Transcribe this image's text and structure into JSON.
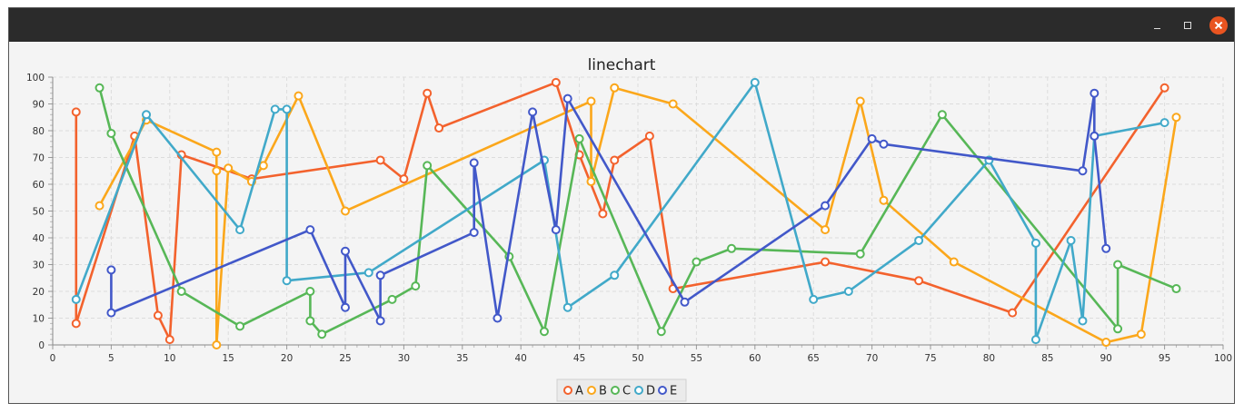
{
  "window": {
    "title": "",
    "controls": {
      "minimize": "minimize",
      "maximize": "maximize",
      "close": "close"
    }
  },
  "chart_data": {
    "type": "line",
    "title": "linechart",
    "xlabel": "",
    "ylabel": "",
    "xlim": [
      0,
      100
    ],
    "ylim": [
      0,
      100
    ],
    "xticks": [
      0,
      5,
      10,
      15,
      20,
      25,
      30,
      35,
      40,
      45,
      50,
      55,
      60,
      65,
      70,
      75,
      80,
      85,
      90,
      95,
      100
    ],
    "yticks": [
      0,
      10,
      20,
      30,
      40,
      50,
      60,
      70,
      80,
      90,
      100
    ],
    "grid": true,
    "legend_position": "bottom",
    "series": [
      {
        "name": "A",
        "color": "#f3622d",
        "points": [
          [
            2,
            87
          ],
          [
            2,
            8
          ],
          [
            7,
            78
          ],
          [
            9,
            11
          ],
          [
            10,
            2
          ],
          [
            11,
            71
          ],
          [
            17,
            62
          ],
          [
            28,
            69
          ],
          [
            30,
            62
          ],
          [
            32,
            94
          ],
          [
            33,
            81
          ],
          [
            43,
            98
          ],
          [
            45,
            71
          ],
          [
            47,
            49
          ],
          [
            48,
            69
          ],
          [
            51,
            78
          ],
          [
            53,
            21
          ],
          [
            66,
            31
          ],
          [
            74,
            24
          ],
          [
            82,
            12
          ],
          [
            95,
            96
          ]
        ]
      },
      {
        "name": "B",
        "color": "#fba71b",
        "points": [
          [
            4,
            52
          ],
          [
            8,
            84
          ],
          [
            14,
            72
          ],
          [
            14,
            65
          ],
          [
            14,
            0
          ],
          [
            15,
            66
          ],
          [
            17,
            61
          ],
          [
            18,
            67
          ],
          [
            21,
            93
          ],
          [
            25,
            50
          ],
          [
            46,
            91
          ],
          [
            46,
            61
          ],
          [
            48,
            96
          ],
          [
            53,
            90
          ],
          [
            66,
            43
          ],
          [
            69,
            91
          ],
          [
            71,
            54
          ],
          [
            77,
            31
          ],
          [
            90,
            1
          ],
          [
            93,
            4
          ],
          [
            96,
            85
          ]
        ]
      },
      {
        "name": "C",
        "color": "#57b757",
        "points": [
          [
            4,
            96
          ],
          [
            5,
            79
          ],
          [
            11,
            20
          ],
          [
            16,
            7
          ],
          [
            22,
            20
          ],
          [
            22,
            9
          ],
          [
            23,
            4
          ],
          [
            29,
            17
          ],
          [
            31,
            22
          ],
          [
            32,
            67
          ],
          [
            39,
            33
          ],
          [
            42,
            5
          ],
          [
            45,
            77
          ],
          [
            52,
            5
          ],
          [
            55,
            31
          ],
          [
            58,
            36
          ],
          [
            69,
            34
          ],
          [
            76,
            86
          ],
          [
            91,
            6
          ],
          [
            91,
            30
          ],
          [
            96,
            21
          ]
        ]
      },
      {
        "name": "D",
        "color": "#41a9c9",
        "points": [
          [
            2,
            17
          ],
          [
            8,
            86
          ],
          [
            16,
            43
          ],
          [
            19,
            88
          ],
          [
            20,
            88
          ],
          [
            20,
            24
          ],
          [
            27,
            27
          ],
          [
            42,
            69
          ],
          [
            44,
            14
          ],
          [
            48,
            26
          ],
          [
            60,
            98
          ],
          [
            65,
            17
          ],
          [
            68,
            20
          ],
          [
            74,
            39
          ],
          [
            80,
            69
          ],
          [
            84,
            38
          ],
          [
            84,
            2
          ],
          [
            87,
            39
          ],
          [
            88,
            9
          ],
          [
            89,
            78
          ],
          [
            95,
            83
          ]
        ]
      },
      {
        "name": "E",
        "color": "#4258c9",
        "points": [
          [
            5,
            28
          ],
          [
            5,
            12
          ],
          [
            22,
            43
          ],
          [
            25,
            14
          ],
          [
            25,
            35
          ],
          [
            28,
            9
          ],
          [
            28,
            26
          ],
          [
            36,
            42
          ],
          [
            36,
            68
          ],
          [
            38,
            10
          ],
          [
            41,
            87
          ],
          [
            43,
            43
          ],
          [
            44,
            92
          ],
          [
            54,
            16
          ],
          [
            66,
            52
          ],
          [
            70,
            77
          ],
          [
            71,
            75
          ],
          [
            88,
            65
          ],
          [
            89,
            94
          ],
          [
            89,
            78
          ],
          [
            90,
            36
          ]
        ]
      }
    ]
  }
}
